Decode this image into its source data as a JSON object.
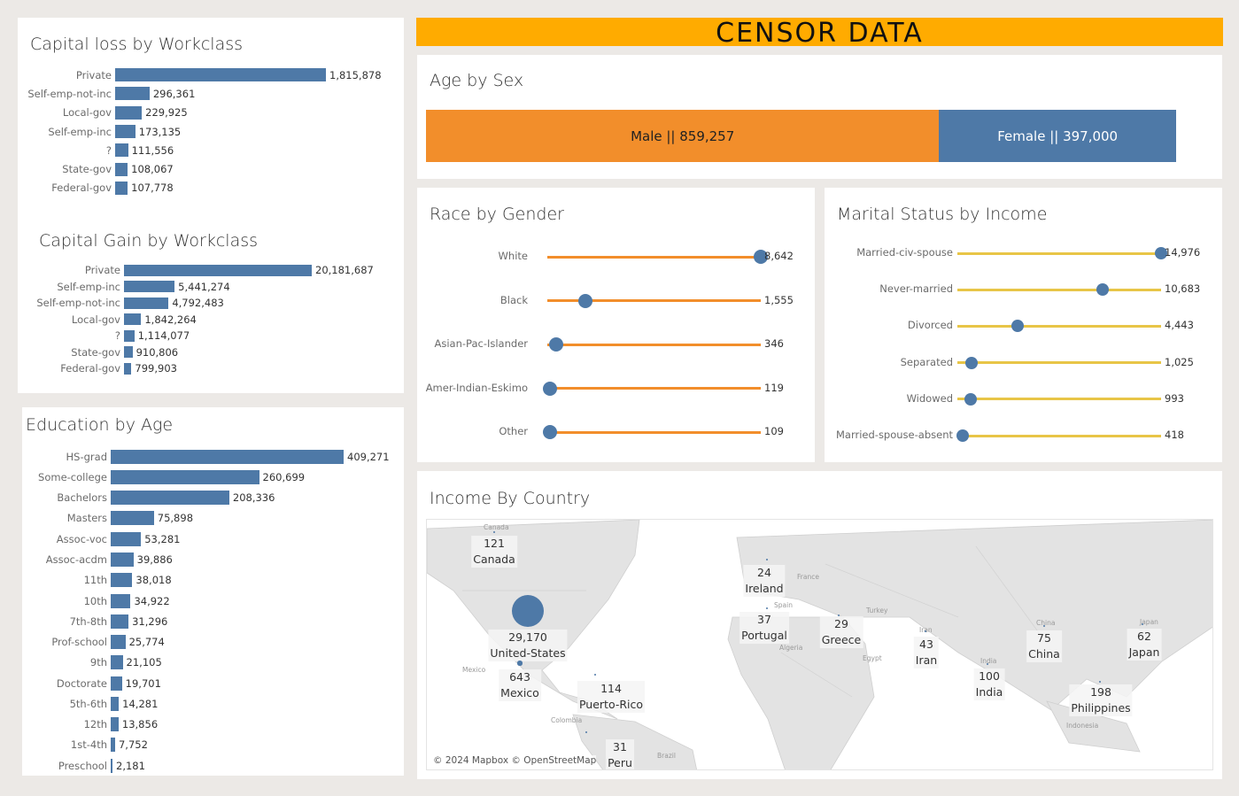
{
  "header": {
    "title": "CENSOR DATA"
  },
  "colors": {
    "blue": "#4e79a7",
    "orange": "#f28e2b",
    "yellow": "#e8c547",
    "banner": "#ffab00"
  },
  "chart_data": [
    {
      "id": "capital_loss",
      "type": "bar",
      "title": "Capital loss by Workclass",
      "categories": [
        "Private",
        "Self-emp-not-inc",
        "Local-gov",
        "Self-emp-inc",
        "?",
        "State-gov",
        "Federal-gov"
      ],
      "values": [
        1815878,
        296361,
        229925,
        173135,
        111556,
        108067,
        107778
      ]
    },
    {
      "id": "capital_gain",
      "type": "bar",
      "title": "Capital Gain by Workclass",
      "categories": [
        "Private",
        "Self-emp-inc",
        "Self-emp-not-inc",
        "Local-gov",
        "?",
        "State-gov",
        "Federal-gov"
      ],
      "values": [
        20181687,
        5441274,
        4792483,
        1842264,
        1114077,
        910806,
        799903
      ]
    },
    {
      "id": "education",
      "type": "bar",
      "title": "Education by Age",
      "categories": [
        "HS-grad",
        "Some-college",
        "Bachelors",
        "Masters",
        "Assoc-voc",
        "Assoc-acdm",
        "11th",
        "10th",
        "7th-8th",
        "Prof-school",
        "9th",
        "Doctorate",
        "5th-6th",
        "12th",
        "1st-4th",
        "Preschool"
      ],
      "values": [
        409271,
        260699,
        208336,
        75898,
        53281,
        39886,
        38018,
        34922,
        31296,
        25774,
        21105,
        19701,
        14281,
        13856,
        7752,
        2181
      ]
    },
    {
      "id": "age_by_sex",
      "type": "bar",
      "stacked": true,
      "title": "Age by Sex",
      "categories": [
        "Male",
        "Female"
      ],
      "values": [
        859257,
        397000
      ],
      "labels": [
        "Male || 859,257",
        "Female || 397,000"
      ]
    },
    {
      "id": "race_by_gender",
      "type": "scatter",
      "style": "lollipop",
      "title": "Race by Gender",
      "categories": [
        "White",
        "Black",
        "Asian-Pac-Islander",
        "Amer-Indian-Eskimo",
        "Other"
      ],
      "values": [
        8642,
        1555,
        346,
        119,
        109
      ]
    },
    {
      "id": "marital_by_income",
      "type": "scatter",
      "style": "lollipop",
      "title": "Marital Status by Income",
      "categories": [
        "Married-civ-spouse",
        "Never-married",
        "Divorced",
        "Separated",
        "Widowed",
        "Married-spouse-absent"
      ],
      "values": [
        14976,
        10683,
        4443,
        1025,
        993,
        418
      ]
    },
    {
      "id": "income_by_country",
      "type": "map",
      "title": "Income By Country",
      "points": [
        {
          "country": "Canada",
          "value": 121
        },
        {
          "country": "United-States",
          "value": 29170
        },
        {
          "country": "Mexico",
          "value": 643
        },
        {
          "country": "Puerto-Rico",
          "value": 114
        },
        {
          "country": "Peru",
          "value": 31
        },
        {
          "country": "Ireland",
          "value": 24
        },
        {
          "country": "Portugal",
          "value": 37
        },
        {
          "country": "Greece",
          "value": 29
        },
        {
          "country": "Iran",
          "value": 43
        },
        {
          "country": "India",
          "value": 100
        },
        {
          "country": "China",
          "value": 75
        },
        {
          "country": "Japan",
          "value": 62
        },
        {
          "country": "Philippines",
          "value": 198
        }
      ],
      "basemap_labels": [
        "Canada",
        "Mexico",
        "Colombia",
        "Brazil",
        "France",
        "Spain",
        "Turkey",
        "Algeria",
        "Egypt",
        "Iran",
        "India",
        "China",
        "Japan",
        "Indonesia"
      ],
      "attribution": "© 2024 Mapbox © OpenStreetMap"
    }
  ]
}
